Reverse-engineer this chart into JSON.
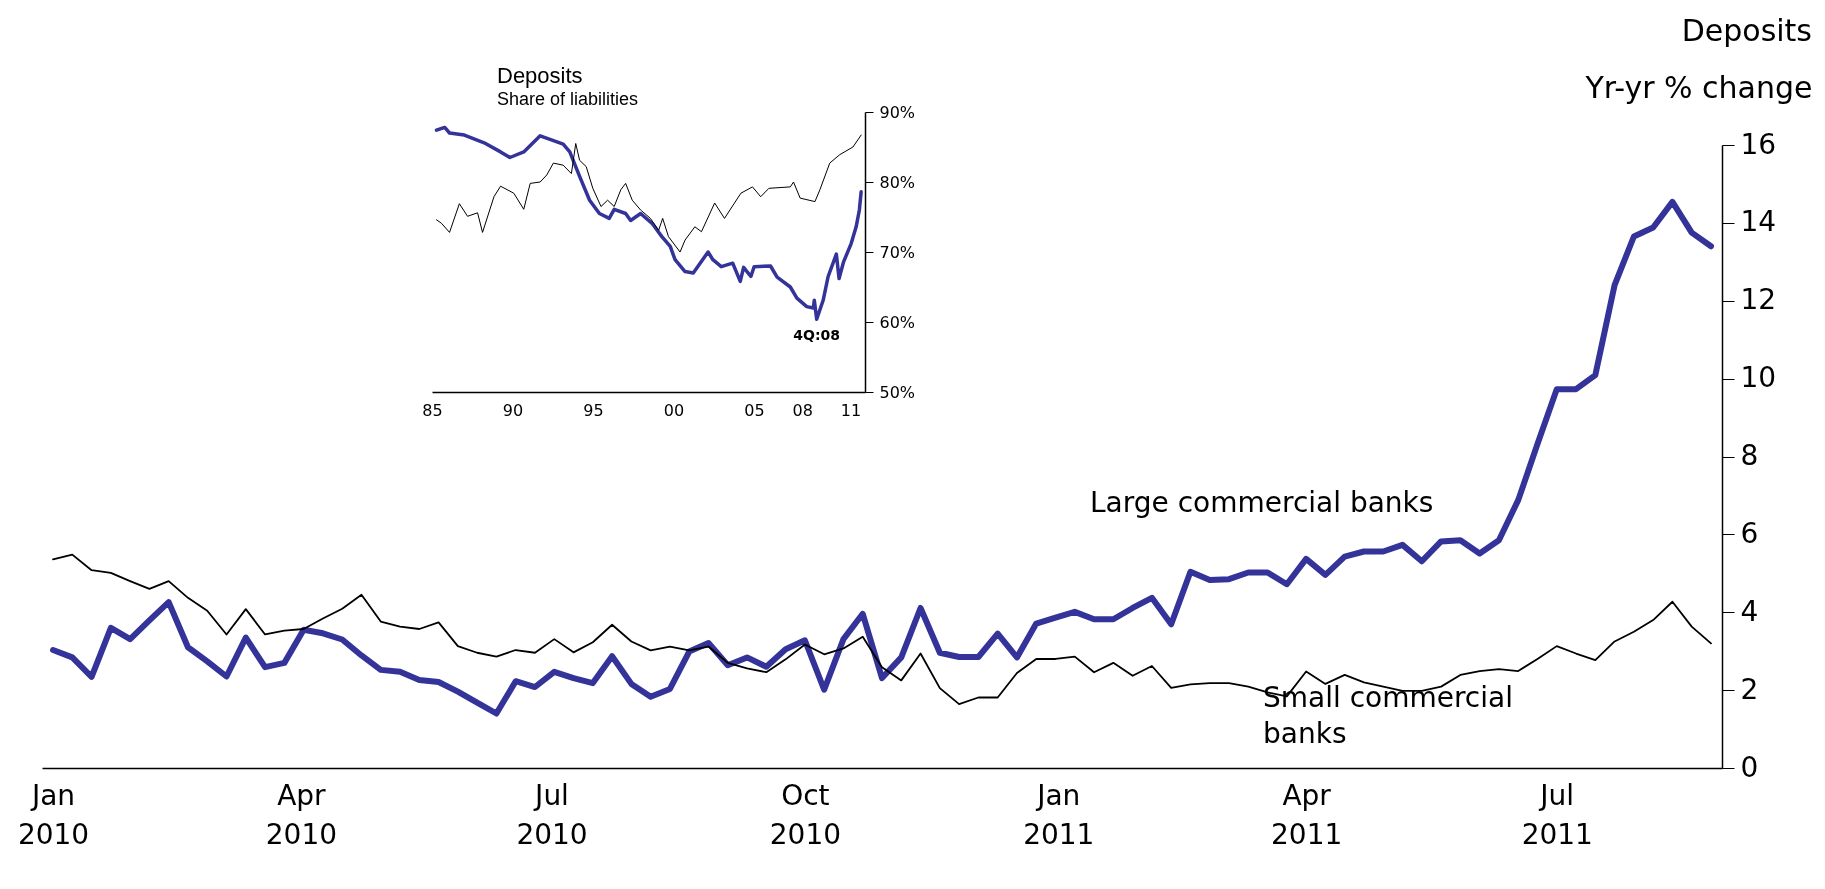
{
  "chart_data": [
    {
      "type": "line",
      "title": "Deposits",
      "ylabel": "Yr-yr % change",
      "x": [
        "2010-01-01",
        "2010-01-08",
        "2010-01-15",
        "2010-01-22",
        "2010-01-29",
        "2010-02-05",
        "2010-02-12",
        "2010-02-19",
        "2010-02-26",
        "2010-03-05",
        "2010-03-12",
        "2010-03-19",
        "2010-03-26",
        "2010-04-02",
        "2010-04-09",
        "2010-04-16",
        "2010-04-23",
        "2010-04-30",
        "2010-05-07",
        "2010-05-14",
        "2010-05-21",
        "2010-05-28",
        "2010-06-04",
        "2010-06-11",
        "2010-06-18",
        "2010-06-25",
        "2010-07-02",
        "2010-07-09",
        "2010-07-16",
        "2010-07-23",
        "2010-07-30",
        "2010-08-06",
        "2010-08-13",
        "2010-08-20",
        "2010-08-27",
        "2010-09-03",
        "2010-09-10",
        "2010-09-17",
        "2010-09-24",
        "2010-10-01",
        "2010-10-08",
        "2010-10-15",
        "2010-10-22",
        "2010-10-29",
        "2010-11-05",
        "2010-11-12",
        "2010-11-19",
        "2010-11-26",
        "2010-12-03",
        "2010-12-10",
        "2010-12-17",
        "2010-12-24",
        "2010-12-31",
        "2011-01-07",
        "2011-01-14",
        "2011-01-21",
        "2011-01-28",
        "2011-02-04",
        "2011-02-11",
        "2011-02-18",
        "2011-02-25",
        "2011-03-04",
        "2011-03-11",
        "2011-03-18",
        "2011-03-25",
        "2011-04-01",
        "2011-04-08",
        "2011-04-15",
        "2011-04-22",
        "2011-04-29",
        "2011-05-06",
        "2011-05-13",
        "2011-05-20",
        "2011-05-27",
        "2011-06-03",
        "2011-06-10",
        "2011-06-17",
        "2011-06-24",
        "2011-07-01",
        "2011-07-08",
        "2011-07-15",
        "2011-07-22",
        "2011-07-29",
        "2011-08-05",
        "2011-08-12",
        "2011-08-19",
        "2011-08-26"
      ],
      "series": [
        {
          "name": "Large commercial banks",
          "color": "#333399",
          "values": [
            3.03,
            2.84,
            2.34,
            3.6,
            3.31,
            3.79,
            4.26,
            3.1,
            2.74,
            2.35,
            3.35,
            2.59,
            2.7,
            3.55,
            3.46,
            3.3,
            2.89,
            2.52,
            2.47,
            2.26,
            2.21,
            1.96,
            1.68,
            1.4,
            2.23,
            2.08,
            2.47,
            2.31,
            2.18,
            2.87,
            2.16,
            1.83,
            2.03,
            2.99,
            3.21,
            2.64,
            2.84,
            2.6,
            3.05,
            3.28,
            2.01,
            3.31,
            3.96,
            2.31,
            2.84,
            4.11,
            2.96,
            2.85,
            2.85,
            3.45,
            2.84,
            3.71,
            3.86,
            4.01,
            3.82,
            3.82,
            4.11,
            4.37,
            3.69,
            5.04,
            4.83,
            4.85,
            5.02,
            5.02,
            4.72,
            5.37,
            4.96,
            5.43,
            5.56,
            5.56,
            5.73,
            5.31,
            5.82,
            5.85,
            5.51,
            5.85,
            6.88,
            8.32,
            9.73,
            9.73,
            10.09,
            12.4,
            13.65,
            13.88,
            14.54,
            13.75,
            13.4
          ]
        },
        {
          "name": "Small commercial banks",
          "color": "#000000",
          "values": [
            5.36,
            5.48,
            5.08,
            5.01,
            4.8,
            4.6,
            4.8,
            4.37,
            4.04,
            3.43,
            4.08,
            3.43,
            3.53,
            3.57,
            3.84,
            4.09,
            4.45,
            3.76,
            3.63,
            3.57,
            3.74,
            3.13,
            2.96,
            2.86,
            3.03,
            2.96,
            3.31,
            2.97,
            3.23,
            3.68,
            3.25,
            3.02,
            3.12,
            3.02,
            3.12,
            2.7,
            2.56,
            2.46,
            2.79,
            3.17,
            2.92,
            3.07,
            3.37,
            2.59,
            2.25,
            2.94,
            2.05,
            1.64,
            1.81,
            1.81,
            2.44,
            2.8,
            2.8,
            2.86,
            2.46,
            2.7,
            2.37,
            2.62,
            2.06,
            2.15,
            2.18,
            2.18,
            2.09,
            1.94,
            1.84,
            2.48,
            2.16,
            2.39,
            2.2,
            2.09,
            1.98,
            1.98,
            2.09,
            2.39,
            2.49,
            2.54,
            2.49,
            2.8,
            3.13,
            2.94,
            2.77,
            3.25,
            3.5,
            3.8,
            4.27,
            3.63,
            3.2
          ]
        }
      ],
      "xlim": [
        "2009-12-28",
        "2011-08-30"
      ],
      "xticks": [
        {
          "value": "2010-01-01",
          "label": "Jan 2010"
        },
        {
          "value": "2010-04-01",
          "label": "Apr 2010"
        },
        {
          "value": "2010-07-01",
          "label": "Jul 2010"
        },
        {
          "value": "2010-10-01",
          "label": "Oct 2010"
        },
        {
          "value": "2011-01-01",
          "label": "Jan 2011"
        },
        {
          "value": "2011-04-01",
          "label": "Apr 2011"
        },
        {
          "value": "2011-07-01",
          "label": "Jul 2011"
        }
      ],
      "ylim": [
        0,
        16
      ],
      "yticks": [
        0,
        2,
        4,
        6,
        8,
        10,
        12,
        14,
        16
      ]
    },
    {
      "type": "line",
      "title": "Deposits",
      "subtitle": "Share of liabilities",
      "series": [
        {
          "color": "#333399",
          "x": [
            1985.28,
            1985.79,
            1986.09,
            1987.01,
            1988.24,
            1989.26,
            1989.84,
            1990.7,
            1991.72,
            1992.33,
            1993.15,
            1993.56,
            1994.17,
            1994.79,
            1995.4,
            1996.01,
            1996.32,
            1997.03,
            1997.34,
            1997.96,
            1998.67,
            1999.28,
            1999.8,
            2000.1,
            2000.72,
            2001.23,
            2002.15,
            2002.45,
            2002.97,
            2003.68,
            2004.15,
            2004.36,
            2004.81,
            2005.01,
            2006.03,
            2006.44,
            2007.26,
            2007.67,
            2008.28,
            2008.69,
            2008.75,
            2008.9,
            2009.3,
            2009.61,
            2010.12,
            2010.29,
            2010.57,
            2011.04,
            2011.35,
            2011.55,
            2011.66
          ],
          "values": [
            87.4,
            87.8,
            87.0,
            86.7,
            85.6,
            84.3,
            83.5,
            84.3,
            86.6,
            86.1,
            85.4,
            84.3,
            80.8,
            77.4,
            75.5,
            74.8,
            76.1,
            75.5,
            74.5,
            75.5,
            74.1,
            72.2,
            70.8,
            68.9,
            67.2,
            67.0,
            70.0,
            68.9,
            67.9,
            68.4,
            65.8,
            67.8,
            66.5,
            67.9,
            68.0,
            66.4,
            65.0,
            63.4,
            62.2,
            62.0,
            63.1,
            60.4,
            63.1,
            66.5,
            69.7,
            66.2,
            68.6,
            71.2,
            73.6,
            76.0,
            78.6
          ]
        },
        {
          "color": "#000000",
          "x": [
            1985.28,
            1985.59,
            1986.09,
            1986.7,
            1987.21,
            1987.83,
            1988.14,
            1988.85,
            1989.26,
            1990.08,
            1990.7,
            1991.1,
            1991.72,
            1992.13,
            1992.54,
            1993.15,
            1993.66,
            1993.93,
            1994.17,
            1994.58,
            1994.99,
            1995.5,
            1995.91,
            1996.32,
            1996.73,
            1997.03,
            1997.44,
            1997.96,
            1998.57,
            1999.08,
            1999.33,
            1999.69,
            2000.41,
            2000.72,
            2001.33,
            2001.74,
            2002.56,
            2003.17,
            2004.19,
            2004.91,
            2005.42,
            2005.93,
            2007.26,
            2007.46,
            2007.87,
            2008.79,
            2009.1,
            2009.71,
            2010.33,
            2011.15,
            2011.66
          ],
          "values": [
            74.6,
            74.1,
            72.8,
            76.9,
            75.1,
            75.6,
            72.8,
            77.9,
            79.4,
            78.4,
            76.1,
            79.8,
            80.0,
            81.0,
            82.7,
            82.4,
            81.2,
            85.5,
            83.1,
            82.2,
            79.1,
            76.5,
            77.4,
            76.5,
            78.9,
            79.8,
            77.4,
            76.0,
            74.8,
            73.1,
            74.8,
            72.2,
            70.0,
            71.7,
            73.6,
            72.9,
            77.0,
            74.8,
            78.4,
            79.3,
            77.9,
            79.1,
            79.3,
            80.0,
            77.7,
            77.2,
            78.9,
            82.7,
            83.9,
            85.0,
            86.7
          ]
        }
      ],
      "annotations": [
        {
          "text": "4Q:08",
          "x": 2008.9,
          "y": 60.4
        }
      ],
      "xlim": [
        1985,
        2011.9
      ],
      "xticks": [
        {
          "value": 1985,
          "label": "85"
        },
        {
          "value": 1990,
          "label": "90"
        },
        {
          "value": 1995,
          "label": "95"
        },
        {
          "value": 2000,
          "label": "00"
        },
        {
          "value": 2005,
          "label": "05"
        },
        {
          "value": 2008,
          "label": "08"
        },
        {
          "value": 2011,
          "label": "11"
        }
      ],
      "ylim": [
        50,
        90
      ],
      "yticks": [
        {
          "value": 50,
          "label": "50%"
        },
        {
          "value": 60,
          "label": "60%"
        },
        {
          "value": 70,
          "label": "70%"
        },
        {
          "value": 80,
          "label": "80%"
        },
        {
          "value": 90,
          "label": "90%"
        }
      ]
    }
  ]
}
